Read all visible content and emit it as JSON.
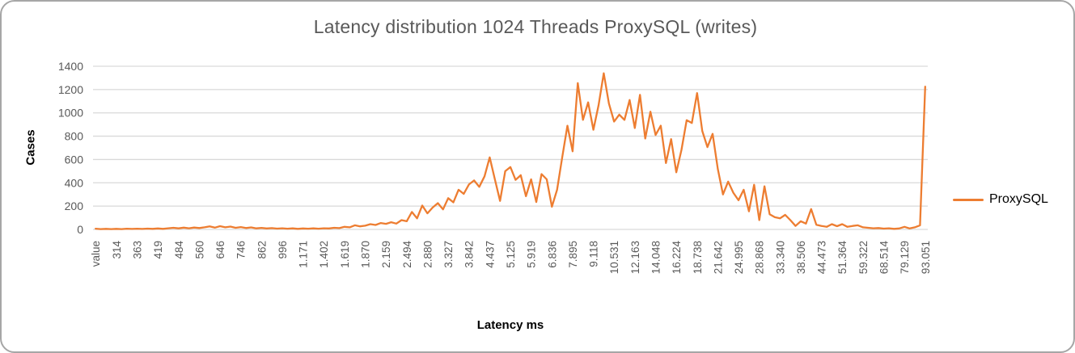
{
  "colors": {
    "series": "#ED7D31",
    "gridline": "#D9D9D9",
    "tick_label": "#595959",
    "title": "#595959",
    "axis_title": "#000000",
    "legend_text": "#000000",
    "frame_border": "#A6A6A6",
    "background": "#FFFFFF"
  },
  "legend": {
    "entries": [
      {
        "label": "ProxySQL",
        "color": "#ED7D31"
      }
    ],
    "position": "right"
  },
  "chart_data": {
    "type": "line",
    "title": "Latency distribution 1024 Threads ProxySQL (writes)",
    "xlabel": "Latency ms",
    "ylabel": "Cases",
    "ylim": [
      0,
      1400
    ],
    "y_ticks": [
      0,
      200,
      400,
      600,
      800,
      1000,
      1200,
      1400
    ],
    "grid": true,
    "x_tick_interval": 4,
    "x_tick_labels": [
      "value",
      "314",
      "363",
      "419",
      "484",
      "560",
      "646",
      "746",
      "862",
      "996",
      "1.171",
      "1.402",
      "1.619",
      "1.870",
      "2.159",
      "2.494",
      "2.880",
      "3.327",
      "3.842",
      "4.437",
      "5.125",
      "5.919",
      "6.836",
      "7.895",
      "9.118",
      "10.531",
      "12.163",
      "14.048",
      "16.224",
      "18.738",
      "21.642",
      "24.995",
      "28.868",
      "33.340",
      "38.506",
      "44.473",
      "51.364",
      "59.322",
      "68.514",
      "79.129",
      "93.051"
    ],
    "series": [
      {
        "name": "ProxySQL",
        "color": "#ED7D31",
        "values": [
          6,
          3,
          5,
          3,
          5,
          3,
          6,
          4,
          6,
          4,
          7,
          5,
          8,
          5,
          10,
          14,
          9,
          15,
          10,
          16,
          12,
          18,
          26,
          15,
          28,
          18,
          24,
          14,
          20,
          12,
          17,
          9,
          13,
          8,
          11,
          7,
          10,
          6,
          9,
          5,
          8,
          6,
          9,
          6,
          10,
          8,
          14,
          11,
          22,
          18,
          35,
          26,
          32,
          45,
          38,
          55,
          48,
          62,
          50,
          80,
          70,
          150,
          95,
          205,
          138,
          188,
          225,
          172,
          268,
          232,
          340,
          305,
          385,
          420,
          365,
          455,
          618,
          430,
          245,
          500,
          535,
          425,
          465,
          285,
          430,
          235,
          475,
          430,
          195,
          340,
          620,
          890,
          670,
          1255,
          940,
          1090,
          855,
          1065,
          1340,
          1080,
          925,
          985,
          940,
          1110,
          870,
          1155,
          780,
          1010,
          810,
          890,
          570,
          775,
          490,
          683,
          937,
          913,
          1170,
          845,
          706,
          820,
          520,
          300,
          410,
          315,
          250,
          340,
          155,
          383,
          80,
          370,
          130,
          105,
          95,
          125,
          80,
          30,
          70,
          50,
          175,
          40,
          30,
          22,
          45,
          28,
          45,
          22,
          30,
          35,
          18,
          14,
          10,
          12,
          7,
          10,
          5,
          8,
          22,
          8,
          18,
          35,
          1225
        ]
      }
    ]
  }
}
